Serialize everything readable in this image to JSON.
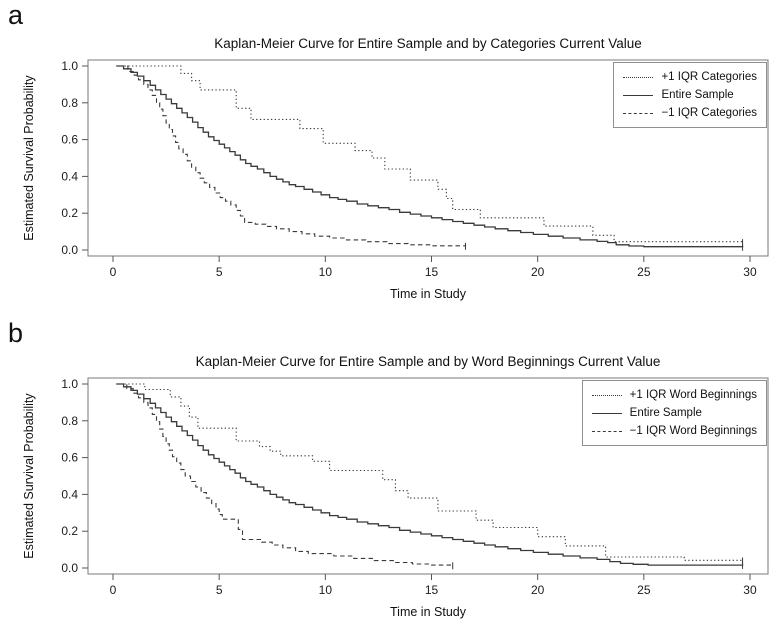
{
  "page": {
    "background": "#ffffff",
    "line_color": "#3a3a3a",
    "frame_color": "#7a7a7a"
  },
  "chart_data": [
    {
      "type": "line",
      "panel_label": "a",
      "title": "Kaplan-Meier Curve for Entire Sample and by Categories Current Value",
      "xlabel": "Time in Study",
      "ylabel": "Estimated Survival Probability",
      "x_ticks": [
        0,
        5,
        10,
        15,
        20,
        25,
        30
      ],
      "y_ticks": [
        "1.0",
        "0.8",
        "0.6",
        "0.4",
        "0.2",
        "0.0"
      ],
      "xlim": [
        -1.2,
        30.9
      ],
      "ylim": [
        -0.033,
        1.033
      ],
      "grid": false,
      "legend_position": "top-right",
      "legend": [
        {
          "label": "+1 IQR Categories",
          "style": "dotted"
        },
        {
          "label": "Entire Sample",
          "style": "solid"
        },
        {
          "label": "−1 IQR Categories",
          "style": "dashed"
        }
      ],
      "series": [
        {
          "name": "+1 IQR Categories",
          "style": "dotted",
          "end_tick": true,
          "points": [
            [
              0.2,
              1.0
            ],
            [
              3.2,
              0.96
            ],
            [
              3.7,
              0.92
            ],
            [
              4.1,
              0.87
            ],
            [
              5.8,
              0.77
            ],
            [
              6.5,
              0.71
            ],
            [
              8.8,
              0.66
            ],
            [
              9.9,
              0.58
            ],
            [
              11.4,
              0.54
            ],
            [
              12.2,
              0.5
            ],
            [
              12.8,
              0.44
            ],
            [
              14.0,
              0.38
            ],
            [
              15.3,
              0.33
            ],
            [
              15.7,
              0.28
            ],
            [
              16.0,
              0.22
            ],
            [
              17.3,
              0.175
            ],
            [
              20.3,
              0.13
            ],
            [
              22.6,
              0.08
            ],
            [
              23.6,
              0.045
            ],
            [
              29.65,
              0.04
            ]
          ]
        },
        {
          "name": "Entire Sample",
          "style": "solid",
          "end_tick": true,
          "points": [
            [
              0.15,
              1.0
            ],
            [
              0.5,
              0.985
            ],
            [
              0.85,
              0.965
            ],
            [
              1.15,
              0.945
            ],
            [
              1.45,
              0.92
            ],
            [
              1.75,
              0.895
            ],
            [
              2.0,
              0.87
            ],
            [
              2.25,
              0.845
            ],
            [
              2.5,
              0.82
            ],
            [
              2.75,
              0.795
            ],
            [
              3.0,
              0.77
            ],
            [
              3.25,
              0.745
            ],
            [
              3.5,
              0.72
            ],
            [
              3.75,
              0.695
            ],
            [
              4.0,
              0.665
            ],
            [
              4.25,
              0.64
            ],
            [
              4.5,
              0.615
            ],
            [
              4.75,
              0.595
            ],
            [
              5.0,
              0.575
            ],
            [
              5.25,
              0.555
            ],
            [
              5.5,
              0.535
            ],
            [
              5.75,
              0.515
            ],
            [
              6.0,
              0.49
            ],
            [
              6.25,
              0.47
            ],
            [
              6.5,
              0.455
            ],
            [
              6.8,
              0.44
            ],
            [
              7.1,
              0.42
            ],
            [
              7.4,
              0.4
            ],
            [
              7.7,
              0.385
            ],
            [
              8.0,
              0.37
            ],
            [
              8.3,
              0.355
            ],
            [
              8.6,
              0.345
            ],
            [
              9.0,
              0.33
            ],
            [
              9.4,
              0.315
            ],
            [
              9.8,
              0.3
            ],
            [
              10.2,
              0.285
            ],
            [
              10.6,
              0.275
            ],
            [
              11.0,
              0.265
            ],
            [
              11.5,
              0.25
            ],
            [
              12.0,
              0.24
            ],
            [
              12.5,
              0.23
            ],
            [
              13.0,
              0.22
            ],
            [
              13.5,
              0.205
            ],
            [
              14.0,
              0.195
            ],
            [
              14.5,
              0.185
            ],
            [
              15.0,
              0.175
            ],
            [
              15.5,
              0.165
            ],
            [
              16.0,
              0.155
            ],
            [
              16.5,
              0.145
            ],
            [
              17.0,
              0.135
            ],
            [
              17.5,
              0.125
            ],
            [
              18.0,
              0.115
            ],
            [
              18.6,
              0.105
            ],
            [
              19.2,
              0.095
            ],
            [
              19.8,
              0.085
            ],
            [
              20.5,
              0.075
            ],
            [
              21.2,
              0.065
            ],
            [
              22.0,
              0.055
            ],
            [
              22.8,
              0.047
            ],
            [
              23.3,
              0.04
            ],
            [
              23.7,
              0.028
            ],
            [
              24.3,
              0.022
            ],
            [
              25.0,
              0.018
            ],
            [
              29.65,
              0.015
            ]
          ]
        },
        {
          "name": "−1 IQR Categories",
          "style": "dashed",
          "end_tick": true,
          "points": [
            [
              0.3,
              1.0
            ],
            [
              0.7,
              0.97
            ],
            [
              1.0,
              0.95
            ],
            [
              1.2,
              0.925
            ],
            [
              1.45,
              0.9
            ],
            [
              1.65,
              0.87
            ],
            [
              1.85,
              0.84
            ],
            [
              2.05,
              0.8
            ],
            [
              2.2,
              0.765
            ],
            [
              2.35,
              0.73
            ],
            [
              2.5,
              0.69
            ],
            [
              2.65,
              0.655
            ],
            [
              2.8,
              0.62
            ],
            [
              2.95,
              0.585
            ],
            [
              3.1,
              0.55
            ],
            [
              3.3,
              0.52
            ],
            [
              3.5,
              0.485
            ],
            [
              3.7,
              0.45
            ],
            [
              3.9,
              0.42
            ],
            [
              4.1,
              0.39
            ],
            [
              4.3,
              0.365
            ],
            [
              4.55,
              0.34
            ],
            [
              4.8,
              0.31
            ],
            [
              5.05,
              0.285
            ],
            [
              5.3,
              0.265
            ],
            [
              5.55,
              0.245
            ],
            [
              5.8,
              0.215
            ],
            [
              6.0,
              0.185
            ],
            [
              6.2,
              0.15
            ],
            [
              6.7,
              0.14
            ],
            [
              7.2,
              0.128
            ],
            [
              7.7,
              0.115
            ],
            [
              8.3,
              0.1
            ],
            [
              8.9,
              0.088
            ],
            [
              9.5,
              0.075
            ],
            [
              10.2,
              0.065
            ],
            [
              11.0,
              0.055
            ],
            [
              11.9,
              0.045
            ],
            [
              12.9,
              0.035
            ],
            [
              13.9,
              0.028
            ],
            [
              15.0,
              0.023
            ],
            [
              16.6,
              0.02
            ]
          ]
        }
      ]
    },
    {
      "type": "line",
      "panel_label": "b",
      "title": "Kaplan-Meier Curve for Entire Sample and by Word Beginnings Current Value",
      "xlabel": "Time in Study",
      "ylabel": "Estimated Survival Probability",
      "x_ticks": [
        0,
        5,
        10,
        15,
        20,
        25,
        30
      ],
      "y_ticks": [
        "1.0",
        "0.8",
        "0.6",
        "0.4",
        "0.2",
        "0.0"
      ],
      "xlim": [
        -1.2,
        30.9
      ],
      "ylim": [
        -0.033,
        1.033
      ],
      "grid": false,
      "legend_position": "top-right",
      "legend": [
        {
          "label": "+1 IQR Word Beginnings",
          "style": "dotted"
        },
        {
          "label": "Entire Sample",
          "style": "solid"
        },
        {
          "label": "−1 IQR Word Beginnings",
          "style": "dashed"
        }
      ],
      "series": [
        {
          "name": "+1 IQR Word Beginnings",
          "style": "dotted",
          "end_tick": true,
          "points": [
            [
              0.2,
              1.0
            ],
            [
              1.5,
              0.97
            ],
            [
              2.7,
              0.93
            ],
            [
              3.2,
              0.88
            ],
            [
              3.6,
              0.82
            ],
            [
              4.0,
              0.76
            ],
            [
              5.8,
              0.69
            ],
            [
              6.9,
              0.66
            ],
            [
              7.4,
              0.635
            ],
            [
              7.9,
              0.61
            ],
            [
              9.4,
              0.58
            ],
            [
              10.2,
              0.53
            ],
            [
              12.7,
              0.48
            ],
            [
              13.3,
              0.42
            ],
            [
              13.9,
              0.38
            ],
            [
              15.3,
              0.31
            ],
            [
              17.1,
              0.26
            ],
            [
              17.9,
              0.22
            ],
            [
              20.0,
              0.17
            ],
            [
              21.3,
              0.12
            ],
            [
              23.2,
              0.06
            ],
            [
              26.9,
              0.042
            ],
            [
              29.65,
              0.038
            ]
          ]
        },
        {
          "name": "Entire Sample",
          "style": "solid",
          "end_tick": true,
          "points": [
            [
              0.15,
              1.0
            ],
            [
              0.5,
              0.985
            ],
            [
              0.85,
              0.965
            ],
            [
              1.15,
              0.945
            ],
            [
              1.45,
              0.92
            ],
            [
              1.75,
              0.895
            ],
            [
              2.0,
              0.87
            ],
            [
              2.25,
              0.845
            ],
            [
              2.5,
              0.82
            ],
            [
              2.75,
              0.795
            ],
            [
              3.0,
              0.77
            ],
            [
              3.25,
              0.745
            ],
            [
              3.5,
              0.72
            ],
            [
              3.75,
              0.695
            ],
            [
              4.0,
              0.665
            ],
            [
              4.25,
              0.64
            ],
            [
              4.5,
              0.615
            ],
            [
              4.75,
              0.595
            ],
            [
              5.0,
              0.575
            ],
            [
              5.25,
              0.555
            ],
            [
              5.5,
              0.535
            ],
            [
              5.75,
              0.515
            ],
            [
              6.0,
              0.49
            ],
            [
              6.25,
              0.47
            ],
            [
              6.5,
              0.455
            ],
            [
              6.8,
              0.44
            ],
            [
              7.1,
              0.42
            ],
            [
              7.4,
              0.4
            ],
            [
              7.7,
              0.385
            ],
            [
              8.0,
              0.37
            ],
            [
              8.3,
              0.355
            ],
            [
              8.6,
              0.345
            ],
            [
              9.0,
              0.33
            ],
            [
              9.4,
              0.315
            ],
            [
              9.8,
              0.3
            ],
            [
              10.2,
              0.285
            ],
            [
              10.6,
              0.275
            ],
            [
              11.0,
              0.265
            ],
            [
              11.5,
              0.25
            ],
            [
              12.0,
              0.24
            ],
            [
              12.5,
              0.23
            ],
            [
              13.0,
              0.22
            ],
            [
              13.5,
              0.205
            ],
            [
              14.0,
              0.195
            ],
            [
              14.5,
              0.185
            ],
            [
              15.0,
              0.175
            ],
            [
              15.5,
              0.165
            ],
            [
              16.0,
              0.155
            ],
            [
              16.5,
              0.145
            ],
            [
              17.0,
              0.135
            ],
            [
              17.5,
              0.125
            ],
            [
              18.0,
              0.115
            ],
            [
              18.6,
              0.105
            ],
            [
              19.2,
              0.095
            ],
            [
              19.8,
              0.085
            ],
            [
              20.5,
              0.075
            ],
            [
              21.2,
              0.065
            ],
            [
              22.0,
              0.055
            ],
            [
              22.8,
              0.047
            ],
            [
              23.4,
              0.035
            ],
            [
              23.9,
              0.025
            ],
            [
              24.5,
              0.02
            ],
            [
              25.2,
              0.016
            ],
            [
              29.65,
              0.014
            ]
          ]
        },
        {
          "name": "−1 IQR Word Beginnings",
          "style": "dashed",
          "end_tick": true,
          "points": [
            [
              0.3,
              1.0
            ],
            [
              0.65,
              0.975
            ],
            [
              0.95,
              0.95
            ],
            [
              1.2,
              0.925
            ],
            [
              1.45,
              0.9
            ],
            [
              1.65,
              0.87
            ],
            [
              1.85,
              0.835
            ],
            [
              2.05,
              0.795
            ],
            [
              2.2,
              0.755
            ],
            [
              2.35,
              0.715
            ],
            [
              2.5,
              0.675
            ],
            [
              2.65,
              0.64
            ],
            [
              2.8,
              0.605
            ],
            [
              3.0,
              0.57
            ],
            [
              3.2,
              0.535
            ],
            [
              3.4,
              0.5
            ],
            [
              3.65,
              0.47
            ],
            [
              3.9,
              0.44
            ],
            [
              4.15,
              0.41
            ],
            [
              4.4,
              0.38
            ],
            [
              4.65,
              0.35
            ],
            [
              4.85,
              0.32
            ],
            [
              5.0,
              0.29
            ],
            [
              5.15,
              0.265
            ],
            [
              5.9,
              0.21
            ],
            [
              6.1,
              0.155
            ],
            [
              7.0,
              0.14
            ],
            [
              7.5,
              0.125
            ],
            [
              8.0,
              0.11
            ],
            [
              8.6,
              0.09
            ],
            [
              9.2,
              0.078
            ],
            [
              10.4,
              0.065
            ],
            [
              11.3,
              0.052
            ],
            [
              12.3,
              0.04
            ],
            [
              13.2,
              0.03
            ],
            [
              14.1,
              0.022
            ],
            [
              15.0,
              0.016
            ],
            [
              16.0,
              0.012
            ]
          ]
        }
      ]
    }
  ]
}
